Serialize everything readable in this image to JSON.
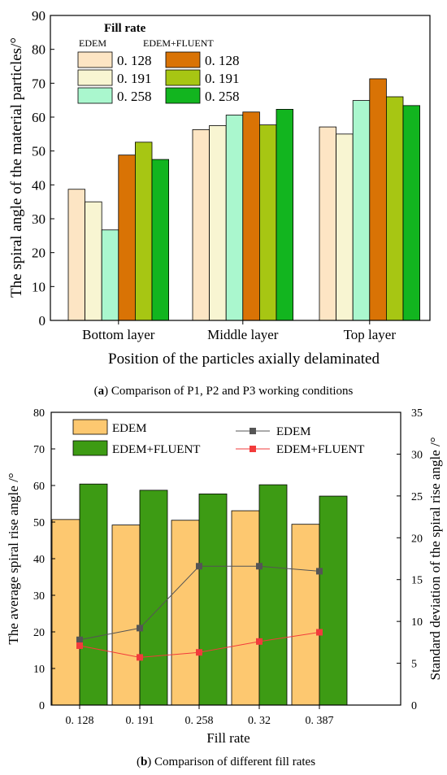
{
  "colors": {
    "a_edem_0128": "#fde5c4",
    "a_edem_0191": "#f8f5d2",
    "a_edem_0258": "#aaf7ce",
    "a_ef_0128": "#d97305",
    "a_ef_0191": "#a7c613",
    "a_ef_0258": "#12b51f",
    "b_edem_bar": "#fdc870",
    "b_ef_bar": "#3d9b14",
    "b_edem_line": "#555555",
    "b_ef_line": "#f23b3b"
  },
  "chart_data": [
    {
      "type": "bar",
      "ylabel": "The spiral angle of the material particles/°",
      "xlabel": "Position of the particles axially delaminated",
      "categories": [
        "Bottom layer",
        "Middle layer",
        "Top layer"
      ],
      "ylim": [
        0,
        90
      ],
      "yticks": [
        0,
        10,
        20,
        30,
        40,
        50,
        60,
        70,
        80,
        90
      ],
      "legend": {
        "title": "Fill rate",
        "group_edem": "EDEM",
        "group_ef": "EDEM+FLUENT",
        "placement": "top-left"
      },
      "series": [
        {
          "name": "0. 128",
          "group": "EDEM",
          "values": [
            38.7,
            56.3,
            57.1
          ]
        },
        {
          "name": "0. 191",
          "group": "EDEM",
          "values": [
            35.0,
            57.5,
            55.0
          ]
        },
        {
          "name": "0. 258",
          "group": "EDEM",
          "values": [
            26.7,
            60.6,
            64.9
          ]
        },
        {
          "name": "0. 128",
          "group": "EDEM+FLUENT",
          "values": [
            48.8,
            61.5,
            71.3
          ]
        },
        {
          "name": "0. 191",
          "group": "EDEM+FLUENT",
          "values": [
            52.6,
            57.7,
            66.0
          ]
        },
        {
          "name": "0. 258",
          "group": "EDEM+FLUENT",
          "values": [
            47.5,
            62.3,
            63.4
          ]
        }
      ],
      "caption_label": "a",
      "caption_text": " Comparison of P1, P2 and P3 working conditions"
    },
    {
      "type": "bar",
      "ylabel": "The average spiral rise angle /°",
      "y2label": "Standard deviation of the spiral rise angle /°",
      "xlabel": "Fill rate",
      "categories": [
        "0. 128",
        "0. 191",
        "0. 258",
        "0. 32",
        "0. 387"
      ],
      "ylim": [
        0,
        80
      ],
      "yticks": [
        0,
        10,
        20,
        30,
        40,
        50,
        60,
        70,
        80
      ],
      "y2lim": [
        0,
        35
      ],
      "y2ticks": [
        0,
        5,
        10,
        15,
        20,
        25,
        30,
        35
      ],
      "legend_placement": "top",
      "bar_series": [
        {
          "name": "EDEM",
          "values": [
            50.7,
            49.2,
            50.5,
            53.1,
            49.4
          ]
        },
        {
          "name": "EDEM+FLUENT",
          "values": [
            60.4,
            58.7,
            57.7,
            60.2,
            57.1
          ]
        }
      ],
      "line_series": [
        {
          "name": "EDEM",
          "axis": "right",
          "values": [
            7.8,
            9.2,
            16.6,
            16.6,
            16.0
          ]
        },
        {
          "name": "EDEM+FLUENT",
          "axis": "right",
          "values": [
            7.1,
            5.7,
            6.3,
            7.6,
            8.7
          ]
        }
      ],
      "caption_label": "b",
      "caption_text": " Comparison of different fill rates"
    }
  ]
}
